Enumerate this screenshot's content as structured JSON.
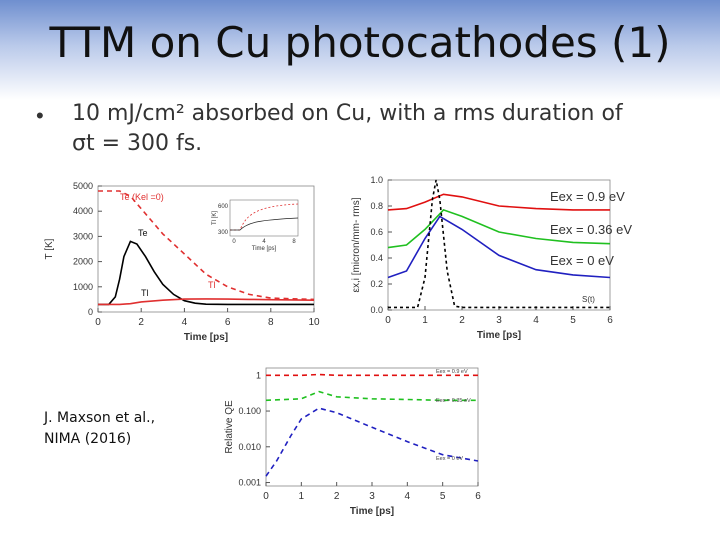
{
  "slide": {
    "title": "TTM on Cu photocathodes (1)",
    "bullet": "•",
    "line1": "10 mJ/cm² absorbed on Cu, with a rms duration of",
    "line2": "σt = 300 fs.",
    "reference": [
      "J. Maxson et al.,",
      "NIMA (2016)"
    ]
  },
  "chart_data": [
    {
      "type": "line",
      "xlabel": "Time [ps]",
      "ylabel": "T [K]",
      "xlim": [
        0,
        10
      ],
      "ylim": [
        0,
        5000
      ],
      "xticks": [
        "0",
        "2",
        "4",
        "6",
        "8",
        "10"
      ],
      "yticks": [
        "0",
        "1000",
        "2000",
        "3000",
        "4000",
        "5000"
      ],
      "annotations": [
        "Te (Kel =0)",
        "Te",
        "Tl",
        "Tl"
      ],
      "series": [
        {
          "color": "#e03030",
          "dash": "5,4",
          "x": [
            0,
            1.0,
            1.5,
            2,
            3,
            4,
            5,
            6,
            7,
            8,
            10
          ],
          "values": [
            4800,
            4800,
            4600,
            4100,
            3100,
            2300,
            1500,
            1000,
            700,
            550,
            500
          ]
        },
        {
          "color": "#000000",
          "dash": "",
          "x": [
            0,
            0.5,
            0.8,
            1,
            1.2,
            1.5,
            1.8,
            2.2,
            2.6,
            3,
            3.5,
            4,
            4.5,
            5,
            6,
            7,
            8,
            10
          ],
          "values": [
            300,
            300,
            600,
            1300,
            2200,
            2800,
            2700,
            2200,
            1600,
            1100,
            700,
            450,
            350,
            310,
            300,
            300,
            300,
            300
          ]
        },
        {
          "color": "#e03030",
          "dash": "",
          "x": [
            0,
            1,
            1.5,
            2,
            3,
            4,
            5,
            6,
            7,
            8,
            10
          ],
          "values": [
            300,
            300,
            330,
            400,
            470,
            510,
            520,
            510,
            500,
            490,
            470
          ]
        }
      ],
      "inset": {
        "xlabel": "Time [ps]",
        "ylabel": "Tl [K]",
        "xticks": [
          "0",
          "4",
          "8"
        ],
        "yticks": [
          "300",
          "600"
        ]
      }
    },
    {
      "type": "line",
      "xlabel": "Time [ps]",
      "ylabel": "εx,i [micron/mm- rms]",
      "xlim": [
        0,
        6
      ],
      "ylim": [
        0,
        1.0
      ],
      "xticks": [
        "0",
        "1",
        "2",
        "3",
        "4",
        "5",
        "6"
      ],
      "yticks": [
        "0.0",
        "0.2",
        "0.4",
        "0.6",
        "0.8",
        "1.0"
      ],
      "annotations": [
        "S(t)"
      ],
      "series": [
        {
          "name": "Eex = 0.9 eV",
          "color": "#e01010",
          "x": [
            0,
            0.5,
            1.0,
            1.5,
            2.0,
            3,
            4,
            5,
            6
          ],
          "values": [
            0.77,
            0.78,
            0.83,
            0.89,
            0.87,
            0.8,
            0.78,
            0.77,
            0.77
          ]
        },
        {
          "name": "Eex = 0.36 eV",
          "color": "#20c020",
          "x": [
            0,
            0.5,
            1.0,
            1.5,
            2.0,
            3,
            4,
            5,
            6
          ],
          "values": [
            0.48,
            0.5,
            0.62,
            0.77,
            0.72,
            0.6,
            0.55,
            0.52,
            0.51
          ]
        },
        {
          "name": "Eex = 0 eV",
          "color": "#2020c0",
          "x": [
            0,
            0.5,
            1.0,
            1.4,
            2.0,
            3,
            4,
            5,
            6
          ],
          "values": [
            0.25,
            0.3,
            0.55,
            0.72,
            0.62,
            0.42,
            0.31,
            0.27,
            0.25
          ]
        },
        {
          "name": "S(t)",
          "color": "#000000",
          "dash": "3,3",
          "x": [
            0,
            0.8,
            1.0,
            1.2,
            1.3,
            1.4,
            1.6,
            1.8,
            2.0,
            6
          ],
          "values": [
            0.02,
            0.02,
            0.25,
            0.85,
            1.0,
            0.85,
            0.3,
            0.03,
            0.02,
            0.02
          ]
        }
      ]
    },
    {
      "type": "line",
      "xlabel": "Time [ps]",
      "ylabel": "Relative QE",
      "xlim": [
        0,
        6
      ],
      "yscale": "log",
      "xticks": [
        "0",
        "1",
        "2",
        "3",
        "4",
        "5",
        "6"
      ],
      "yticks": [
        "0.001",
        "0.010",
        "0.100",
        "1"
      ],
      "series": [
        {
          "name": "Eex = 0.9 eV",
          "color": "#e01010",
          "dash": "5,4",
          "x": [
            0,
            1,
            1.5,
            2,
            3,
            4,
            5,
            6
          ],
          "values": [
            1.0,
            1.0,
            1.05,
            1.0,
            1.0,
            1.0,
            1.0,
            1.0
          ]
        },
        {
          "name": "Eex = 0.35 eV",
          "color": "#20c020",
          "dash": "5,4",
          "x": [
            0,
            1,
            1.5,
            2,
            3,
            4,
            5,
            6
          ],
          "values": [
            0.2,
            0.22,
            0.35,
            0.25,
            0.22,
            0.21,
            0.2,
            0.2
          ]
        },
        {
          "name": "Eex = 0 eV",
          "color": "#2020c0",
          "dash": "5,4",
          "x": [
            0,
            0.3,
            0.7,
            1,
            1.5,
            2,
            3,
            4,
            5,
            6
          ],
          "values": [
            0.0015,
            0.004,
            0.02,
            0.06,
            0.12,
            0.09,
            0.035,
            0.014,
            0.006,
            0.004
          ]
        }
      ]
    }
  ]
}
